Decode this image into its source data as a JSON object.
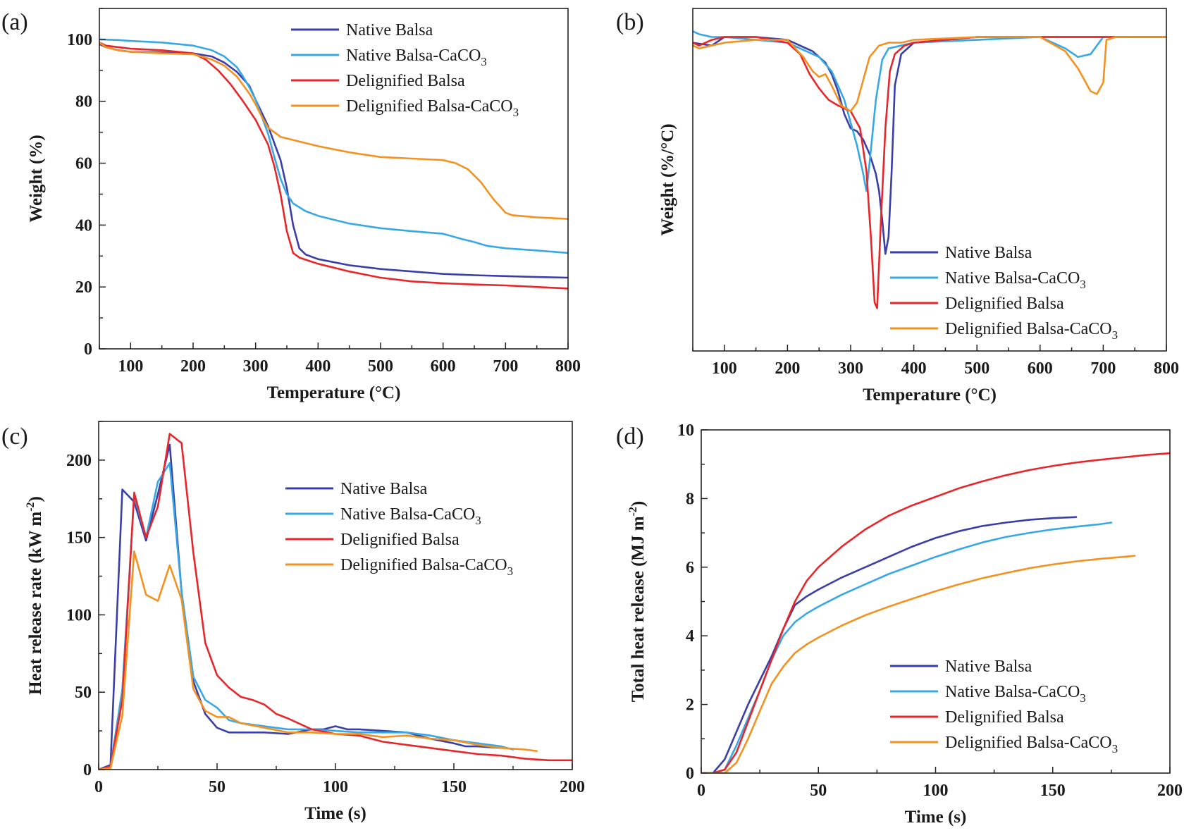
{
  "colors": {
    "native_balsa": "#3a3ea8",
    "native_balsa_caco3": "#38a8e4",
    "delignified_balsa": "#e8262a",
    "delignified_balsa_caco3": "#f39221"
  },
  "chart_data": [
    {
      "id": "a",
      "panel_label": "(a)",
      "type": "line",
      "title": "",
      "xlabel": "Temperature (°C)",
      "ylabel": "Weight (%)",
      "xlim": [
        50,
        800
      ],
      "ylim": [
        0,
        110
      ],
      "xticks": [
        100,
        200,
        300,
        400,
        500,
        600,
        700,
        800
      ],
      "yticks": [
        0,
        20,
        40,
        60,
        80,
        100
      ],
      "legend_position": "top-right",
      "series": [
        {
          "name": "Native Balsa",
          "color_key": "native_balsa",
          "x": [
            50,
            60,
            80,
            100,
            150,
            200,
            230,
            250,
            270,
            290,
            300,
            320,
            340,
            350,
            360,
            370,
            380,
            400,
            450,
            500,
            550,
            600,
            650,
            700,
            750,
            800
          ],
          "y": [
            98.5,
            97.5,
            96.5,
            96,
            95.8,
            95.5,
            94.5,
            92.5,
            89.5,
            85,
            80.5,
            72,
            61,
            52,
            40,
            32.5,
            30.5,
            29,
            27,
            25.8,
            25,
            24.2,
            23.8,
            23.5,
            23.2,
            23
          ]
        },
        {
          "name": "Native Balsa-CaCO₃",
          "color_key": "native_balsa_caco3",
          "x": [
            50,
            80,
            100,
            150,
            200,
            230,
            250,
            270,
            280,
            290,
            300,
            310,
            320,
            330,
            340,
            350,
            360,
            380,
            400,
            450,
            500,
            550,
            600,
            630,
            650,
            670,
            700,
            750,
            800
          ],
          "y": [
            100,
            99.8,
            99.5,
            99,
            98,
            96.5,
            94.5,
            91,
            88,
            84.5,
            80.5,
            75,
            69.5,
            62,
            55,
            50,
            47,
            44.5,
            43,
            40.5,
            39,
            38,
            37.2,
            35.5,
            34.5,
            33.3,
            32.5,
            31.8,
            31
          ]
        },
        {
          "name": "Delignified Balsa",
          "color_key": "delignified_balsa",
          "x": [
            50,
            60,
            80,
            100,
            150,
            200,
            220,
            240,
            260,
            280,
            300,
            320,
            330,
            340,
            350,
            360,
            370,
            380,
            400,
            450,
            500,
            550,
            600,
            650,
            700,
            750,
            800
          ],
          "y": [
            99,
            98,
            97.5,
            97,
            96.5,
            95.5,
            93.5,
            90,
            85.5,
            80,
            74,
            66,
            59,
            50,
            38,
            31,
            29.5,
            28.8,
            27.5,
            25,
            23,
            21.8,
            21.2,
            20.8,
            20.5,
            20,
            19.5
          ]
        },
        {
          "name": "Delignified Balsa-CaCO₃",
          "color_key": "delignified_balsa_caco3",
          "x": [
            50,
            60,
            80,
            100,
            150,
            200,
            230,
            250,
            270,
            290,
            300,
            310,
            320,
            340,
            360,
            400,
            450,
            500,
            550,
            600,
            620,
            640,
            660,
            680,
            700,
            710,
            750,
            800
          ],
          "y": [
            99,
            97.5,
            96.5,
            96,
            95.5,
            95.2,
            93.5,
            91.5,
            88,
            82.5,
            79,
            75,
            71.5,
            68.5,
            67.5,
            65.5,
            63.5,
            62,
            61.5,
            61,
            60,
            58,
            54,
            48.5,
            44,
            43.2,
            42.5,
            42
          ]
        }
      ]
    },
    {
      "id": "b",
      "panel_label": "(b)",
      "type": "line",
      "title": "",
      "xlabel": "Temperature (°C)",
      "ylabel": "Weight (%/°C)",
      "xlim": [
        50,
        800
      ],
      "ylim": [
        -1.08,
        0.12
      ],
      "xticks": [
        100,
        200,
        300,
        400,
        500,
        600,
        700,
        800
      ],
      "yticks": [],
      "legend_position": "bottom-right",
      "series": [
        {
          "name": "Native Balsa",
          "color_key": "native_balsa",
          "x": [
            50,
            80,
            100,
            150,
            200,
            240,
            260,
            270,
            280,
            290,
            300,
            310,
            320,
            330,
            340,
            345,
            350,
            355,
            360,
            365,
            370,
            380,
            400,
            500,
            600,
            700,
            800
          ],
          "y": [
            0.0,
            -0.01,
            0.02,
            0.02,
            0.01,
            -0.03,
            -0.07,
            -0.11,
            -0.17,
            -0.25,
            -0.3,
            -0.31,
            -0.34,
            -0.39,
            -0.46,
            -0.52,
            -0.62,
            -0.74,
            -0.68,
            -0.45,
            -0.15,
            -0.04,
            0.0,
            0.02,
            0.02,
            0.02,
            0.02
          ]
        },
        {
          "name": "Native Balsa-CaCO₃",
          "color_key": "native_balsa_caco3",
          "x": [
            50,
            60,
            80,
            100,
            150,
            200,
            250,
            270,
            290,
            300,
            310,
            320,
            325,
            330,
            340,
            350,
            360,
            380,
            400,
            500,
            600,
            620,
            640,
            660,
            680,
            700,
            800
          ],
          "y": [
            0.04,
            0.03,
            0.02,
            0.02,
            0.01,
            0.0,
            -0.05,
            -0.1,
            -0.2,
            -0.28,
            -0.36,
            -0.46,
            -0.52,
            -0.42,
            -0.2,
            -0.06,
            -0.02,
            -0.01,
            0.0,
            0.01,
            0.02,
            0.0,
            -0.02,
            -0.05,
            -0.04,
            0.02,
            0.02
          ]
        },
        {
          "name": "Delignified Balsa",
          "color_key": "delignified_balsa",
          "x": [
            50,
            60,
            80,
            100,
            150,
            200,
            220,
            235,
            250,
            265,
            280,
            300,
            315,
            325,
            332,
            338,
            342,
            348,
            355,
            362,
            370,
            385,
            400,
            500,
            600,
            700,
            800
          ],
          "y": [
            0.0,
            -0.01,
            0.01,
            0.02,
            0.02,
            0.0,
            -0.04,
            -0.11,
            -0.16,
            -0.2,
            -0.22,
            -0.24,
            -0.3,
            -0.45,
            -0.68,
            -0.91,
            -0.93,
            -0.62,
            -0.3,
            -0.1,
            -0.04,
            -0.01,
            0.0,
            0.02,
            0.02,
            0.02,
            0.02
          ]
        },
        {
          "name": "Delignified Balsa-CaCO₃",
          "color_key": "delignified_balsa_caco3",
          "x": [
            50,
            60,
            80,
            100,
            150,
            200,
            225,
            240,
            250,
            260,
            270,
            285,
            300,
            310,
            320,
            330,
            345,
            360,
            380,
            400,
            500,
            600,
            640,
            660,
            670,
            680,
            690,
            700,
            705,
            720,
            800
          ],
          "y": [
            -0.01,
            -0.02,
            -0.01,
            0.0,
            0.01,
            0.01,
            -0.05,
            -0.1,
            -0.12,
            -0.11,
            -0.15,
            -0.22,
            -0.24,
            -0.21,
            -0.13,
            -0.05,
            -0.01,
            0.0,
            0.0,
            0.01,
            0.02,
            0.02,
            -0.03,
            -0.09,
            -0.13,
            -0.17,
            -0.18,
            -0.14,
            0.01,
            0.02,
            0.02
          ]
        }
      ]
    },
    {
      "id": "c",
      "panel_label": "(c)",
      "type": "line",
      "title": "",
      "xlabel": "Time (s)",
      "ylabel": "Heat release rate (kW m",
      "ylabel_sup": "-2",
      "ylabel_end": ")",
      "xlim": [
        0,
        200
      ],
      "ylim": [
        0,
        225
      ],
      "xticks": [
        0,
        50,
        100,
        150,
        200
      ],
      "yticks": [
        0,
        50,
        100,
        150,
        200
      ],
      "legend_position": "top-right",
      "series": [
        {
          "name": "Native Balsa",
          "color_key": "native_balsa",
          "x": [
            0,
            5,
            10,
            15,
            20,
            25,
            30,
            35,
            40,
            45,
            50,
            55,
            60,
            70,
            80,
            90,
            95,
            100,
            105,
            110,
            120,
            130,
            140,
            150,
            155,
            160,
            170
          ],
          "y": [
            0,
            3,
            181,
            173,
            148,
            178,
            210,
            115,
            57,
            36,
            27,
            24,
            24,
            24,
            23,
            26,
            26,
            28,
            26,
            26,
            25,
            24,
            20,
            17,
            15,
            15,
            14
          ]
        },
        {
          "name": "Native Balsa-CaCO₃",
          "color_key": "native_balsa_caco3",
          "x": [
            0,
            5,
            10,
            15,
            20,
            25,
            30,
            35,
            40,
            45,
            50,
            55,
            60,
            70,
            80,
            90,
            100,
            110,
            120,
            130,
            140,
            150,
            160,
            170,
            175
          ],
          "y": [
            0,
            2,
            52,
            177,
            150,
            186,
            198,
            115,
            60,
            45,
            40,
            32,
            30,
            28,
            26,
            26,
            25,
            24,
            24,
            24,
            22,
            19,
            17,
            15,
            13
          ]
        },
        {
          "name": "Delignified Balsa",
          "color_key": "delignified_balsa",
          "x": [
            0,
            5,
            10,
            15,
            20,
            25,
            30,
            35,
            40,
            45,
            50,
            55,
            60,
            65,
            70,
            75,
            80,
            90,
            100,
            110,
            120,
            130,
            140,
            150,
            160,
            170,
            180,
            190,
            200
          ],
          "y": [
            0,
            2,
            45,
            179,
            150,
            170,
            217,
            211,
            140,
            82,
            61,
            53,
            47,
            45,
            42,
            36,
            33,
            26,
            23,
            22,
            18,
            16,
            14,
            12,
            10,
            9,
            7,
            6,
            6
          ]
        },
        {
          "name": "Delignified Balsa-CaCO₃",
          "color_key": "delignified_balsa_caco3",
          "x": [
            0,
            5,
            10,
            15,
            20,
            25,
            30,
            35,
            40,
            45,
            50,
            55,
            60,
            70,
            80,
            90,
            100,
            110,
            120,
            130,
            140,
            150,
            160,
            170,
            180,
            185
          ],
          "y": [
            0,
            1,
            35,
            141,
            113,
            109,
            132,
            110,
            52,
            38,
            34,
            34,
            30,
            27,
            24,
            24,
            23,
            23,
            21,
            22,
            20,
            19,
            16,
            14,
            13,
            12
          ]
        }
      ]
    },
    {
      "id": "d",
      "panel_label": "(d)",
      "type": "line",
      "title": "",
      "xlabel": "Time (s)",
      "ylabel": "Total heat release (MJ m",
      "ylabel_sup": "-2",
      "ylabel_end": ")",
      "xlim": [
        0,
        200
      ],
      "ylim": [
        0,
        10
      ],
      "xticks": [
        0,
        50,
        100,
        150,
        200
      ],
      "yticks": [
        0,
        2,
        4,
        6,
        8,
        10
      ],
      "legend_position": "bottom-right",
      "series": [
        {
          "name": "Native Balsa",
          "color_key": "native_balsa",
          "x": [
            0,
            5,
            10,
            15,
            20,
            25,
            30,
            35,
            40,
            45,
            50,
            60,
            70,
            80,
            90,
            100,
            110,
            120,
            130,
            140,
            150,
            160
          ],
          "y": [
            0,
            0,
            0.4,
            1.2,
            2.0,
            2.7,
            3.4,
            4.2,
            4.9,
            5.15,
            5.35,
            5.7,
            6.0,
            6.3,
            6.6,
            6.85,
            7.05,
            7.2,
            7.3,
            7.38,
            7.43,
            7.46
          ]
        },
        {
          "name": "Native Balsa-CaCO₃",
          "color_key": "native_balsa_caco3",
          "x": [
            0,
            5,
            10,
            15,
            20,
            25,
            30,
            35,
            40,
            45,
            50,
            60,
            70,
            80,
            90,
            100,
            110,
            120,
            130,
            140,
            150,
            160,
            170,
            175
          ],
          "y": [
            0,
            0,
            0.1,
            0.8,
            1.6,
            2.4,
            3.3,
            4.0,
            4.4,
            4.65,
            4.85,
            5.2,
            5.5,
            5.8,
            6.05,
            6.3,
            6.52,
            6.72,
            6.88,
            7.0,
            7.1,
            7.18,
            7.25,
            7.3
          ]
        },
        {
          "name": "Delignified Balsa",
          "color_key": "delignified_balsa",
          "x": [
            0,
            5,
            10,
            15,
            20,
            25,
            30,
            35,
            40,
            45,
            50,
            60,
            70,
            80,
            90,
            100,
            110,
            120,
            130,
            140,
            150,
            160,
            170,
            180,
            190,
            200
          ],
          "y": [
            0,
            0,
            0.1,
            0.6,
            1.5,
            2.4,
            3.3,
            4.2,
            5.0,
            5.6,
            6.0,
            6.6,
            7.1,
            7.5,
            7.8,
            8.05,
            8.3,
            8.5,
            8.68,
            8.83,
            8.95,
            9.05,
            9.13,
            9.2,
            9.27,
            9.32
          ]
        },
        {
          "name": "Delignified Balsa-CaCO₃",
          "color_key": "delignified_balsa_caco3",
          "x": [
            0,
            5,
            10,
            15,
            20,
            25,
            30,
            35,
            40,
            45,
            50,
            60,
            70,
            80,
            90,
            100,
            110,
            120,
            130,
            140,
            150,
            160,
            170,
            180,
            185
          ],
          "y": [
            0,
            0,
            0,
            0.3,
            1.0,
            1.8,
            2.6,
            3.1,
            3.5,
            3.75,
            3.95,
            4.3,
            4.6,
            4.85,
            5.08,
            5.3,
            5.5,
            5.68,
            5.83,
            5.97,
            6.08,
            6.17,
            6.24,
            6.3,
            6.33
          ]
        }
      ]
    }
  ]
}
